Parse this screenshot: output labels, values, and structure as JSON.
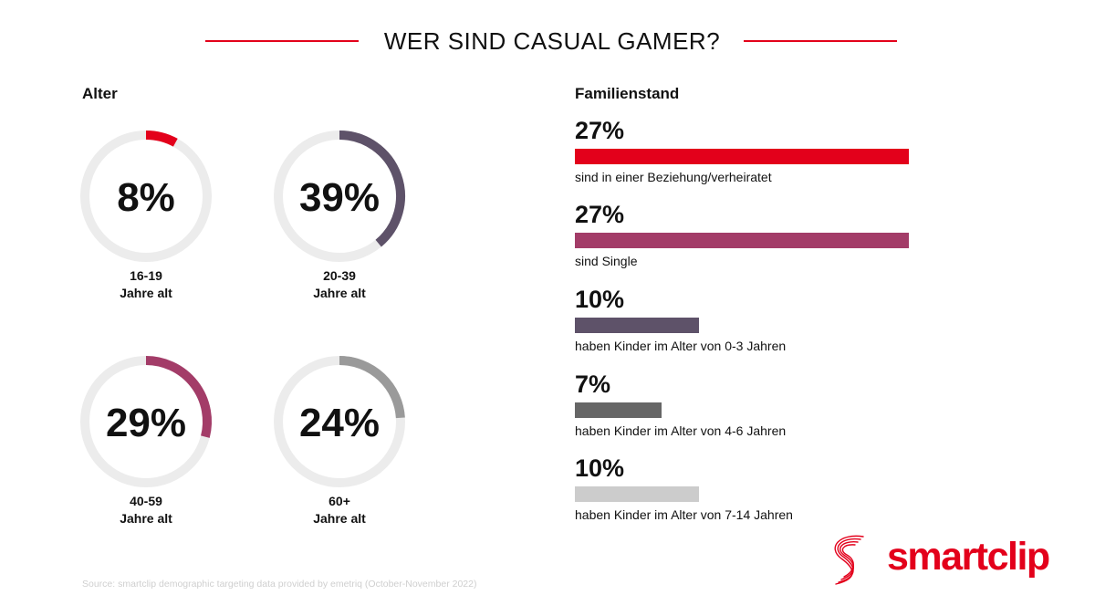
{
  "title": "WER SIND CASUAL GAMER?",
  "colors": {
    "accent": "#e3001b",
    "track": "#ececec"
  },
  "chart_data": [
    {
      "type": "pie",
      "title": "Alter",
      "segments": [
        {
          "value": 8,
          "value_label": "8%",
          "label_line1": "16-19",
          "label_line2": "Jahre alt",
          "color": "#e3001b"
        },
        {
          "value": 39,
          "value_label": "39%",
          "label_line1": "20-39",
          "label_line2": "Jahre alt",
          "color": "#5e5269"
        },
        {
          "value": 29,
          "value_label": "29%",
          "label_line1": "40-59",
          "label_line2": "Jahre alt",
          "color": "#a33c68"
        },
        {
          "value": 24,
          "value_label": "24%",
          "label_line1": "60+",
          "label_line2": "Jahre alt",
          "color": "#9a9a9a"
        }
      ]
    },
    {
      "type": "bar",
      "title": "Familienstand",
      "max": 27,
      "categories": [
        "sind in einer Beziehung/verheiratet",
        "sind Single",
        "haben Kinder im Alter von 0-3 Jahren",
        "haben Kinder im Alter von 4-6 Jahren",
        "haben Kinder im Alter von 7-14 Jahren"
      ],
      "values": [
        27,
        27,
        10,
        7,
        10
      ],
      "value_labels": [
        "27%",
        "27%",
        "10%",
        "7%",
        "10%"
      ],
      "colors": [
        "#e3001b",
        "#a33c68",
        "#5e5269",
        "#666666",
        "#cccccc"
      ]
    }
  ],
  "source": "Source: smartclip demographic targeting data provided by emetriq (October-November 2022)",
  "brand": {
    "name": "smartclip",
    "logo_icon": "smartclip-swirl-icon"
  }
}
